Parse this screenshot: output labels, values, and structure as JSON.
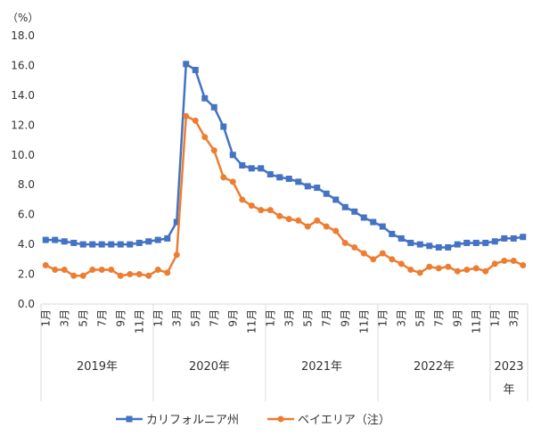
{
  "chart_data": {
    "type": "line",
    "unit": "（%）",
    "ylim": [
      0,
      18
    ],
    "yticks": [
      "0.0",
      "2.0",
      "4.0",
      "6.0",
      "8.0",
      "10.0",
      "12.0",
      "14.0",
      "16.0",
      "18.0"
    ],
    "grid": false,
    "legend_position": "bottom",
    "x": [
      "2019-01",
      "2019-02",
      "2019-03",
      "2019-04",
      "2019-05",
      "2019-06",
      "2019-07",
      "2019-08",
      "2019-09",
      "2019-10",
      "2019-11",
      "2019-12",
      "2020-01",
      "2020-02",
      "2020-03",
      "2020-04",
      "2020-05",
      "2020-06",
      "2020-07",
      "2020-08",
      "2020-09",
      "2020-10",
      "2020-11",
      "2020-12",
      "2021-01",
      "2021-02",
      "2021-03",
      "2021-04",
      "2021-05",
      "2021-06",
      "2021-07",
      "2021-08",
      "2021-09",
      "2021-10",
      "2021-11",
      "2021-12",
      "2022-01",
      "2022-02",
      "2022-03",
      "2022-04",
      "2022-05",
      "2022-06",
      "2022-07",
      "2022-08",
      "2022-09",
      "2022-10",
      "2022-11",
      "2022-12",
      "2023-01",
      "2023-02",
      "2023-03",
      "2023-04"
    ],
    "month_labels": [
      "1月",
      "3月",
      "5月",
      "7月",
      "9月",
      "11月",
      "1月",
      "3月",
      "5月",
      "7月",
      "9月",
      "11月",
      "1月",
      "3月",
      "5月",
      "7月",
      "9月",
      "11月",
      "1月",
      "3月",
      "5月",
      "7月",
      "9月",
      "11月",
      "1月",
      "3月"
    ],
    "year_labels": [
      "2019年",
      "2020年",
      "2021年",
      "2022年",
      "2023",
      "年"
    ],
    "series": [
      {
        "name": "カリフォルニア州",
        "color": "#4472C4",
        "marker": "square",
        "values": [
          4.3,
          4.3,
          4.2,
          4.1,
          4.0,
          4.0,
          4.0,
          4.0,
          4.0,
          4.0,
          4.1,
          4.2,
          4.3,
          4.4,
          5.5,
          16.1,
          15.7,
          13.8,
          13.2,
          11.9,
          10.0,
          9.3,
          9.1,
          9.1,
          8.7,
          8.5,
          8.4,
          8.2,
          7.9,
          7.8,
          7.4,
          7.0,
          6.5,
          6.2,
          5.8,
          5.5,
          5.2,
          4.7,
          4.4,
          4.1,
          4.0,
          3.9,
          3.8,
          3.8,
          4.0,
          4.1,
          4.1,
          4.1,
          4.2,
          4.4,
          4.4,
          4.5
        ]
      },
      {
        "name": "ベイエリア（注）",
        "color": "#ED7D31",
        "marker": "circle",
        "values": [
          2.6,
          2.3,
          2.3,
          1.9,
          1.9,
          2.3,
          2.3,
          2.3,
          1.9,
          2.0,
          2.0,
          1.9,
          2.3,
          2.1,
          3.3,
          12.6,
          12.3,
          11.2,
          10.3,
          8.5,
          8.2,
          7.0,
          6.6,
          6.3,
          6.3,
          5.9,
          5.7,
          5.6,
          5.2,
          5.6,
          5.2,
          4.9,
          4.1,
          3.8,
          3.4,
          3.0,
          3.4,
          3.0,
          2.7,
          2.3,
          2.1,
          2.5,
          2.4,
          2.5,
          2.2,
          2.3,
          2.4,
          2.2,
          2.7,
          2.9,
          2.9,
          2.6
        ]
      }
    ]
  }
}
